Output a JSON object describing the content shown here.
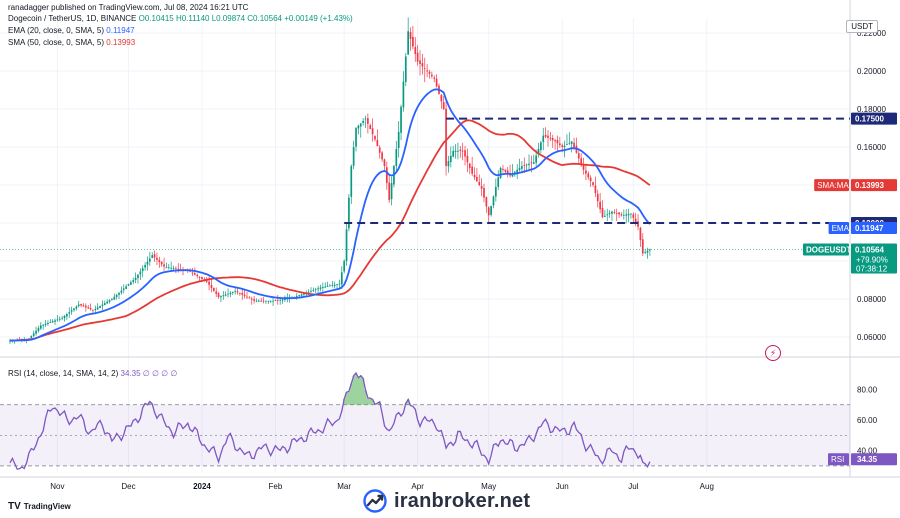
{
  "header": {
    "publisher": "ranadagger published on TradingView.com, Jul 08, 2024 16:21 UTC"
  },
  "legend": {
    "symbol": "Dogecoin / TetherUS, 1D, BINANCE",
    "ohlc": "O0.10415 H0.11140 L0.09874 C0.10564 +0.00149 (+1.43%)",
    "ema_name": "EMA (20, close, 0, SMA, 5)",
    "ema_value": "0.11947",
    "sma_name": "SMA (50, close, 0, SMA, 5)",
    "sma_value": "0.13993",
    "rsi_name": "RSI (14, close, 14, SMA, 14, 2)",
    "rsi_extra": "34.35  ∅  ∅  ∅  ∅"
  },
  "price_axis": {
    "unit": "USDT"
  },
  "tradingview_logo": "TradingView",
  "watermark": "iranbroker.net",
  "colors": {
    "up": "#089981",
    "down": "#f23645",
    "ema": "#2962ff",
    "sma": "#e53935",
    "rsi": "#7e57c2",
    "level": "#1e2a78"
  },
  "chart_data": [
    {
      "type": "candlestick",
      "title": "Dogecoin / TetherUS, 1D, BINANCE",
      "x_ticks": [
        "Nov",
        "Dec",
        "2024",
        "Feb",
        "Mar",
        "Apr",
        "May",
        "Jun",
        "Jul",
        "Aug"
      ],
      "y_ticks": [
        "0.06000",
        "0.08000",
        "0.10000",
        "0.12000",
        "0.14000",
        "0.16000",
        "0.18000",
        "0.20000",
        "0.22000"
      ],
      "ylim": [
        0.052,
        0.228
      ],
      "anchors": [
        [
          "2023-10-12",
          0.058
        ],
        [
          "2023-10-20",
          0.059
        ],
        [
          "2023-10-25",
          0.066
        ],
        [
          "2023-11-03",
          0.07
        ],
        [
          "2023-11-10",
          0.077
        ],
        [
          "2023-11-16",
          0.074
        ],
        [
          "2023-11-24",
          0.08
        ],
        [
          "2023-12-04",
          0.091
        ],
        [
          "2023-12-11",
          0.103
        ],
        [
          "2023-12-16",
          0.097
        ],
        [
          "2023-12-26",
          0.095
        ],
        [
          "2024-01-03",
          0.089
        ],
        [
          "2024-01-08",
          0.081
        ],
        [
          "2024-01-15",
          0.084
        ],
        [
          "2024-01-23",
          0.079
        ],
        [
          "2024-02-01",
          0.079
        ],
        [
          "2024-02-09",
          0.081
        ],
        [
          "2024-02-20",
          0.086
        ],
        [
          "2024-02-28",
          0.088
        ],
        [
          "2024-03-01",
          0.1
        ],
        [
          "2024-03-04",
          0.15
        ],
        [
          "2024-03-06",
          0.17
        ],
        [
          "2024-03-10",
          0.175
        ],
        [
          "2024-03-14",
          0.164
        ],
        [
          "2024-03-18",
          0.15
        ],
        [
          "2024-03-20",
          0.132
        ],
        [
          "2024-03-24",
          0.168
        ],
        [
          "2024-03-28",
          0.221
        ],
        [
          "2024-04-01",
          0.205
        ],
        [
          "2024-04-08",
          0.196
        ],
        [
          "2024-04-12",
          0.18
        ],
        [
          "2024-04-13",
          0.15
        ],
        [
          "2024-04-16",
          0.158
        ],
        [
          "2024-04-20",
          0.158
        ],
        [
          "2024-04-24",
          0.146
        ],
        [
          "2024-04-28",
          0.138
        ],
        [
          "2024-05-01",
          0.124
        ],
        [
          "2024-05-06",
          0.149
        ],
        [
          "2024-05-10",
          0.145
        ],
        [
          "2024-05-15",
          0.15
        ],
        [
          "2024-05-20",
          0.152
        ],
        [
          "2024-05-24",
          0.166
        ],
        [
          "2024-05-29",
          0.163
        ],
        [
          "2024-06-01",
          0.16
        ],
        [
          "2024-06-05",
          0.163
        ],
        [
          "2024-06-10",
          0.148
        ],
        [
          "2024-06-14",
          0.14
        ],
        [
          "2024-06-18",
          0.123
        ],
        [
          "2024-06-22",
          0.126
        ],
        [
          "2024-06-26",
          0.124
        ],
        [
          "2024-06-30",
          0.125
        ],
        [
          "2024-07-03",
          0.118
        ],
        [
          "2024-07-05",
          0.104
        ],
        [
          "2024-07-08",
          0.106
        ]
      ],
      "horizontal_levels": [
        {
          "value": 0.175,
          "label": "0.17500"
        },
        {
          "value": 0.12,
          "label": "0.12000"
        }
      ],
      "series": [
        {
          "name": "EMA",
          "value_label": "0.11947",
          "period": 20,
          "last": 0.11947
        },
        {
          "name": "SMA:MA",
          "value_label": "0.13993",
          "period": 50,
          "last": 0.13993
        }
      ],
      "price_badge": {
        "label": "DOGEUSDT",
        "value": "0.10564",
        "change": "+79.90%",
        "countdown": "07:38:12"
      }
    },
    {
      "type": "line",
      "title": "RSI (14, close, 14, SMA, 14, 2)",
      "y_ticks": [
        "40.00",
        "60.00",
        "80.00"
      ],
      "ylim": [
        26,
        98
      ],
      "band": [
        30,
        70
      ],
      "last_label": "34.35",
      "series_name": "RSI",
      "anchors": [
        [
          "2023-10-12",
          32
        ],
        [
          "2023-10-16",
          28
        ],
        [
          "2023-10-20",
          35
        ],
        [
          "2023-10-26",
          55
        ],
        [
          "2023-10-30",
          70
        ],
        [
          "2023-11-05",
          60
        ],
        [
          "2023-11-10",
          62
        ],
        [
          "2023-11-15",
          52
        ],
        [
          "2023-11-20",
          58
        ],
        [
          "2023-11-24",
          46
        ],
        [
          "2023-12-02",
          56
        ],
        [
          "2023-12-10",
          72
        ],
        [
          "2023-12-15",
          60
        ],
        [
          "2023-12-20",
          52
        ],
        [
          "2023-12-26",
          58
        ],
        [
          "2024-01-03",
          42
        ],
        [
          "2024-01-08",
          36
        ],
        [
          "2024-01-12",
          49
        ],
        [
          "2024-01-20",
          36
        ],
        [
          "2024-01-27",
          42
        ],
        [
          "2024-02-03",
          40
        ],
        [
          "2024-02-12",
          48
        ],
        [
          "2024-02-20",
          54
        ],
        [
          "2024-02-27",
          60
        ],
        [
          "2024-03-01",
          70
        ],
        [
          "2024-03-04",
          86
        ],
        [
          "2024-03-06",
          92
        ],
        [
          "2024-03-12",
          75
        ],
        [
          "2024-03-16",
          68
        ],
        [
          "2024-03-20",
          52
        ],
        [
          "2024-03-25",
          66
        ],
        [
          "2024-03-28",
          72
        ],
        [
          "2024-04-02",
          60
        ],
        [
          "2024-04-09",
          58
        ],
        [
          "2024-04-13",
          42
        ],
        [
          "2024-04-18",
          50
        ],
        [
          "2024-04-25",
          44
        ],
        [
          "2024-05-01",
          34
        ],
        [
          "2024-05-06",
          48
        ],
        [
          "2024-05-12",
          42
        ],
        [
          "2024-05-18",
          46
        ],
        [
          "2024-05-24",
          58
        ],
        [
          "2024-06-01",
          52
        ],
        [
          "2024-06-06",
          56
        ],
        [
          "2024-06-11",
          44
        ],
        [
          "2024-06-17",
          34
        ],
        [
          "2024-06-22",
          40
        ],
        [
          "2024-06-26",
          35
        ],
        [
          "2024-06-30",
          43
        ],
        [
          "2024-07-04",
          36
        ],
        [
          "2024-07-05",
          28
        ],
        [
          "2024-07-08",
          34
        ]
      ]
    }
  ]
}
